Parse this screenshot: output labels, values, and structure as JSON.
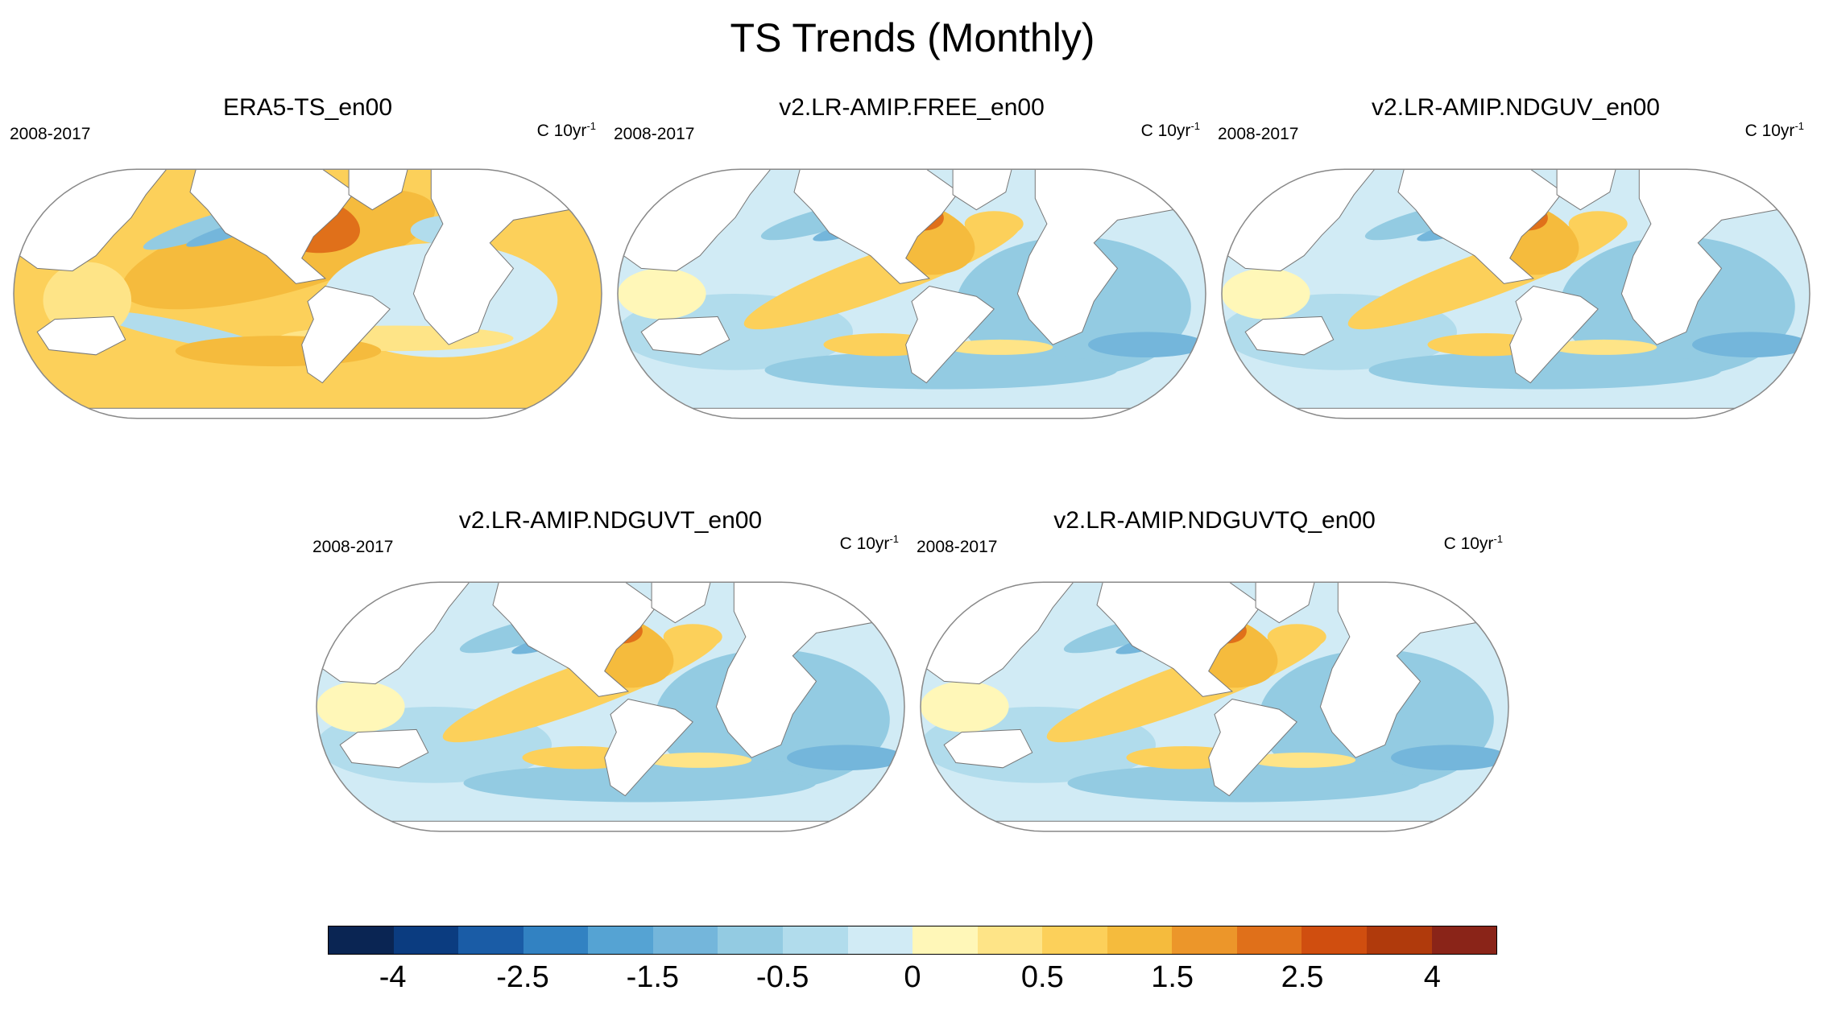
{
  "title": "TS Trends (Monthly)",
  "panels": [
    {
      "title": "ERA5-TS_en00",
      "period": "2008-2017",
      "units_base": "C 10yr",
      "units_exp": "-1",
      "pattern": "obs"
    },
    {
      "title": "v2.LR-AMIP.FREE_en00",
      "period": "2008-2017",
      "units_base": "C 10yr",
      "units_exp": "-1",
      "pattern": "model"
    },
    {
      "title": "v2.LR-AMIP.NDGUV_en00",
      "period": "2008-2017",
      "units_base": "C 10yr",
      "units_exp": "-1",
      "pattern": "model"
    },
    {
      "title": "v2.LR-AMIP.NDGUVT_en00",
      "period": "2008-2017",
      "units_base": "C 10yr",
      "units_exp": "-1",
      "pattern": "model"
    },
    {
      "title": "v2.LR-AMIP.NDGUVTQ_en00",
      "period": "2008-2017",
      "units_base": "C 10yr",
      "units_exp": "-1",
      "pattern": "model"
    }
  ],
  "colorbar": {
    "colors": [
      "#0a2553",
      "#0b3c80",
      "#1a5ca6",
      "#3282c2",
      "#55a3d3",
      "#74b6db",
      "#93cbe2",
      "#b1dcec",
      "#d1ebf5",
      "#fff7b8",
      "#fee487",
      "#fcd05a",
      "#f5bb3d",
      "#ec962a",
      "#e0701a",
      "#d04e0f",
      "#b03a0c",
      "#8a2418"
    ],
    "tick_labels": [
      "-4",
      "-2.5",
      "-1.5",
      "-0.5",
      "0",
      "0.5",
      "1.5",
      "2.5",
      "4"
    ],
    "tick_index": [
      1,
      3,
      5,
      7,
      9,
      11,
      13,
      15,
      17
    ]
  }
}
